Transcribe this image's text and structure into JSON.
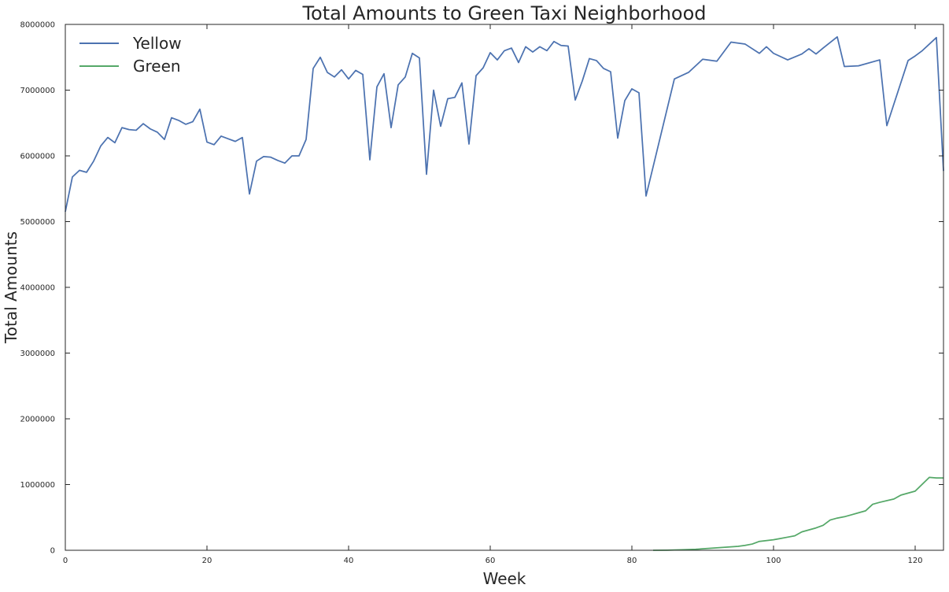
{
  "chart_data": {
    "type": "line",
    "title": "Total Amounts to Green Taxi Neighborhood",
    "xlabel": "Week",
    "ylabel": "Total Amounts",
    "xlim": [
      0,
      124
    ],
    "ylim": [
      0,
      8000000
    ],
    "xticks": [
      "0",
      "20",
      "40",
      "60",
      "80",
      "100",
      "120"
    ],
    "yticks": [
      "0",
      "1000000",
      "2000000",
      "3000000",
      "4000000",
      "5000000",
      "6000000",
      "7000000",
      "8000000"
    ],
    "grid": false,
    "legend_position": "top-left",
    "series": [
      {
        "name": "Yellow",
        "color": "#4c72b0",
        "x": [
          0,
          1,
          2,
          3,
          4,
          5,
          6,
          7,
          8,
          9,
          10,
          11,
          12,
          13,
          14,
          15,
          16,
          17,
          18,
          19,
          20,
          21,
          22,
          23,
          24,
          25,
          26,
          27,
          28,
          29,
          30,
          31,
          32,
          33,
          34,
          35,
          36,
          37,
          38,
          39,
          40,
          41,
          42,
          43,
          44,
          45,
          46,
          47,
          48,
          49,
          50,
          51,
          52,
          53,
          54,
          55,
          56,
          57,
          58,
          59,
          60,
          61,
          62,
          63,
          64,
          65,
          66,
          67,
          68,
          69,
          70,
          71,
          72,
          73,
          74,
          75,
          76,
          77,
          78,
          79,
          80,
          81,
          82,
          86,
          88,
          90,
          92,
          94,
          96,
          98,
          99,
          100,
          102,
          104,
          105,
          106,
          107,
          109,
          110,
          112,
          115,
          116,
          119,
          120,
          121,
          123,
          124
        ],
        "y": [
          5150000,
          5680000,
          5780000,
          5750000,
          5920000,
          6150000,
          6280000,
          6200000,
          6430000,
          6400000,
          6390000,
          6490000,
          6410000,
          6360000,
          6250000,
          6580000,
          6540000,
          6480000,
          6520000,
          6710000,
          6210000,
          6170000,
          6300000,
          6260000,
          6220000,
          6280000,
          5420000,
          5920000,
          5990000,
          5980000,
          5930000,
          5890000,
          6000000,
          6000000,
          6250000,
          7330000,
          7500000,
          7270000,
          7200000,
          7310000,
          7170000,
          7300000,
          7240000,
          5940000,
          7050000,
          7250000,
          6430000,
          7080000,
          7200000,
          7560000,
          7490000,
          5720000,
          7000000,
          6450000,
          6870000,
          6890000,
          7110000,
          6180000,
          7220000,
          7340000,
          7570000,
          7460000,
          7600000,
          7640000,
          7420000,
          7660000,
          7580000,
          7660000,
          7600000,
          7740000,
          7680000,
          7670000,
          6850000,
          7140000,
          7480000,
          7450000,
          7330000,
          7280000,
          6270000,
          6840000,
          7020000,
          6960000,
          5390000,
          7170000,
          7270000,
          7470000,
          7440000,
          7730000,
          7700000,
          7560000,
          7660000,
          7560000,
          7460000,
          7550000,
          7630000,
          7550000,
          7640000,
          7810000,
          7360000,
          7370000,
          7460000,
          6460000,
          7450000,
          7520000,
          7600000,
          7800000,
          5770000
        ]
      },
      {
        "name": "Green",
        "color": "#55a868",
        "x": [
          83,
          85,
          87,
          89,
          91,
          93,
          95,
          96,
          97,
          98,
          100,
          101,
          102,
          103,
          104,
          105,
          106,
          107,
          108,
          109,
          110,
          111,
          112,
          113,
          114,
          115,
          117,
          118,
          119,
          120,
          122,
          123,
          124
        ],
        "y": [
          0,
          2000,
          8000,
          15000,
          30000,
          45000,
          60000,
          75000,
          95000,
          135000,
          160000,
          180000,
          200000,
          220000,
          280000,
          310000,
          340000,
          380000,
          460000,
          490000,
          510000,
          540000,
          570000,
          600000,
          700000,
          730000,
          780000,
          840000,
          870000,
          900000,
          1110000,
          1100000,
          1100000
        ]
      }
    ]
  }
}
